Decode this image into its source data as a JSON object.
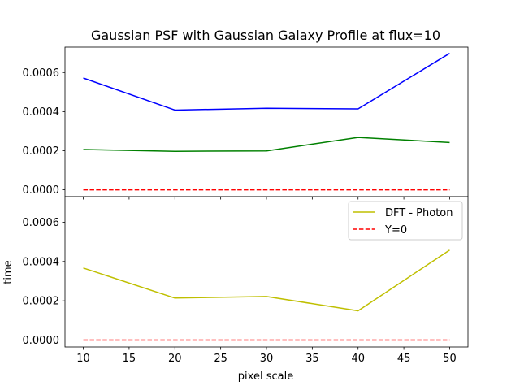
{
  "chart_data": {
    "type": "line",
    "title": "Gaussian PSF with Gaussian Galaxy Profile at flux=10",
    "xlabel": "pixel scale",
    "ylabel": "time",
    "xlim": [
      8,
      52
    ],
    "xticks": [
      10,
      15,
      20,
      25,
      30,
      35,
      40,
      45,
      50
    ],
    "ylim": [
      -3.5e-05,
      0.00073
    ],
    "yticks": [
      0.0,
      0.0002,
      0.0004,
      0.0006
    ],
    "ytick_labels": [
      "0.0000",
      "0.0002",
      "0.0004",
      "0.0006"
    ],
    "grid": false,
    "subplots": [
      {
        "series": [
          {
            "color": "#0000ff",
            "linestyle": "solid",
            "x": [
              10,
              20,
              30,
              40,
              50
            ],
            "values": [
              0.000572,
              0.000408,
              0.000417,
              0.000414,
              0.000698
            ]
          },
          {
            "color": "#008000",
            "linestyle": "solid",
            "x": [
              10,
              20,
              30,
              40,
              50
            ],
            "values": [
              0.000206,
              0.000197,
              0.000199,
              0.000268,
              0.000242
            ]
          },
          {
            "color": "#ff0000",
            "linestyle": "dashed",
            "x": [
              10,
              20,
              30,
              40,
              50
            ],
            "values": [
              0,
              0,
              0,
              0,
              0
            ]
          }
        ],
        "legend": null
      },
      {
        "series": [
          {
            "name": "DFT - Photon",
            "color": "#bfbf00",
            "linestyle": "solid",
            "x": [
              10,
              20,
              30,
              40,
              50
            ],
            "values": [
              0.000367,
              0.000214,
              0.000222,
              0.000149,
              0.000458
            ]
          },
          {
            "name": "Y=0",
            "color": "#ff0000",
            "linestyle": "dashed",
            "x": [
              10,
              20,
              30,
              40,
              50
            ],
            "values": [
              0,
              0,
              0,
              0,
              0
            ]
          }
        ],
        "legend": "upper right"
      }
    ]
  }
}
